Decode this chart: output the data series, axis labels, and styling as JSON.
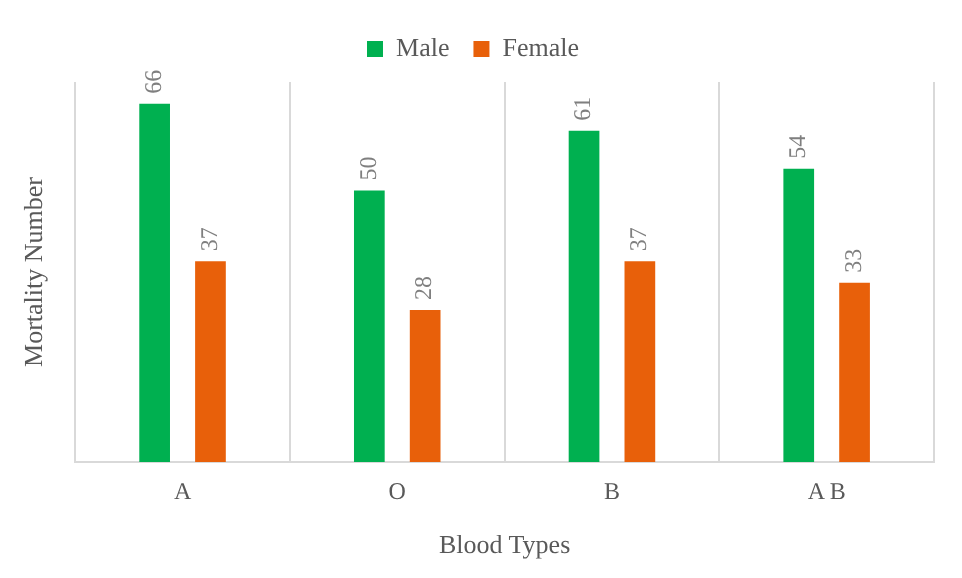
{
  "chart_data": {
    "type": "bar",
    "xlabel": "Blood Types",
    "ylabel": "Mortality Number",
    "categories": [
      "A",
      "O",
      "B",
      "A B"
    ],
    "series": [
      {
        "name": "Male",
        "color": "#00b050",
        "values": [
          66,
          50,
          61,
          54
        ]
      },
      {
        "name": "Female",
        "color": "#e8600a",
        "values": [
          37,
          28,
          37,
          33
        ]
      }
    ],
    "data_labels": true,
    "grid": "x",
    "legend": "top"
  }
}
